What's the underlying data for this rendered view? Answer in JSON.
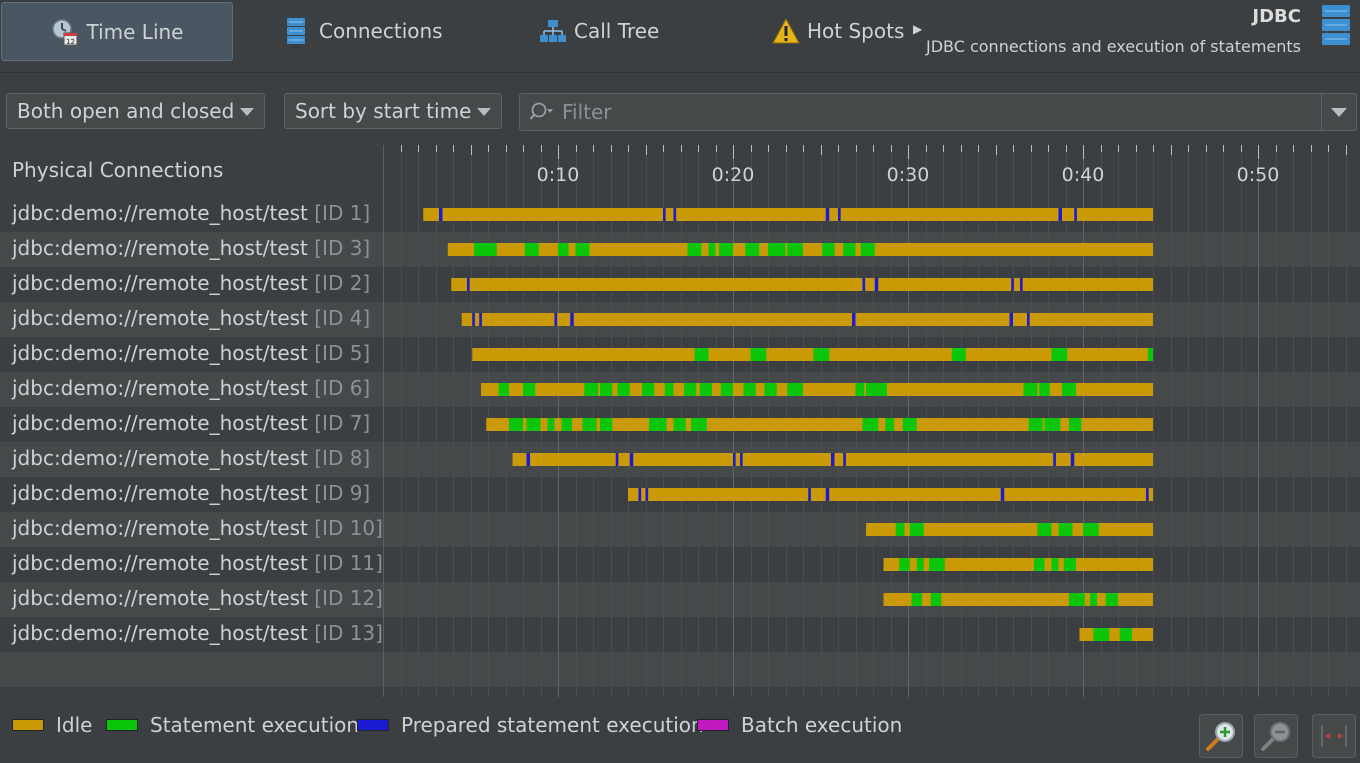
{
  "toolbar": {
    "tabs": [
      {
        "label": "Time Line",
        "icon": "calendar-clock-icon"
      },
      {
        "label": "Connections",
        "icon": "database-icon"
      },
      {
        "label": "Call Tree",
        "icon": "tree-icon"
      },
      {
        "label": "Hot Spots",
        "icon": "warning-icon"
      }
    ],
    "more_icon": "chevron-right-icon",
    "title": "JDBC",
    "subtitle": "JDBC connections and execution of statements"
  },
  "filters": {
    "state_select": "Both open and closed",
    "sort_select": "Sort by start time",
    "filter_placeholder": "Filter"
  },
  "panel": {
    "left_title": "Physical Connections"
  },
  "colors": {
    "idle": "#c99a06",
    "statement": "#0ac50a",
    "prepared": "#1b1bd2",
    "batch": "#c01bc0",
    "background": "#3c3f41",
    "row_alt": "#45494a"
  },
  "chart_data": {
    "type": "timeline",
    "x_unit": "time (m:ss)",
    "xlim": [
      "0:00",
      "0:56"
    ],
    "tick_labels": [
      "0:10",
      "0:20",
      "0:30",
      "0:40",
      "0:50"
    ],
    "legend": [
      {
        "name": "Idle",
        "color_key": "idle"
      },
      {
        "name": "Statement execution",
        "color_key": "statement"
      },
      {
        "name": "Prepared statement execution",
        "color_key": "prepared"
      },
      {
        "name": "Batch execution",
        "color_key": "batch"
      }
    ],
    "rows": [
      {
        "label": "jdbc:demo://remote_host/test",
        "id": "[ID 1]",
        "start": 2.3,
        "end": 44.0,
        "events": [
          {
            "t": 3.2,
            "d": 0.2,
            "k": "prepared"
          },
          {
            "t": 16.0,
            "d": 0.15,
            "k": "prepared"
          },
          {
            "t": 16.6,
            "d": 0.15,
            "k": "prepared"
          },
          {
            "t": 25.3,
            "d": 0.2,
            "k": "prepared"
          },
          {
            "t": 26.0,
            "d": 0.15,
            "k": "prepared"
          },
          {
            "t": 38.6,
            "d": 0.2,
            "k": "prepared"
          },
          {
            "t": 39.5,
            "d": 0.15,
            "k": "prepared"
          }
        ]
      },
      {
        "label": "jdbc:demo://remote_host/test",
        "id": "[ID 3]",
        "start": 3.7,
        "end": 44.0,
        "events": [
          {
            "t": 5.2,
            "d": 1.3,
            "k": "statement"
          },
          {
            "t": 8.1,
            "d": 0.8,
            "k": "statement"
          },
          {
            "t": 10.0,
            "d": 0.6,
            "k": "statement"
          },
          {
            "t": 11.0,
            "d": 0.8,
            "k": "statement"
          },
          {
            "t": 17.4,
            "d": 0.8,
            "k": "statement"
          },
          {
            "t": 18.6,
            "d": 0.4,
            "k": "statement"
          },
          {
            "t": 19.2,
            "d": 0.8,
            "k": "statement"
          },
          {
            "t": 20.7,
            "d": 0.8,
            "k": "statement"
          },
          {
            "t": 22.0,
            "d": 1.0,
            "k": "statement"
          },
          {
            "t": 23.1,
            "d": 0.9,
            "k": "statement"
          },
          {
            "t": 25.1,
            "d": 0.7,
            "k": "statement"
          },
          {
            "t": 26.3,
            "d": 0.7,
            "k": "statement"
          },
          {
            "t": 27.3,
            "d": 0.8,
            "k": "statement"
          }
        ]
      },
      {
        "label": "jdbc:demo://remote_host/test",
        "id": "[ID 2]",
        "start": 3.9,
        "end": 44.0,
        "events": [
          {
            "t": 4.8,
            "d": 0.15,
            "k": "prepared"
          },
          {
            "t": 27.4,
            "d": 0.15,
            "k": "prepared"
          },
          {
            "t": 28.1,
            "d": 0.2,
            "k": "prepared"
          },
          {
            "t": 35.9,
            "d": 0.15,
            "k": "prepared"
          },
          {
            "t": 36.4,
            "d": 0.15,
            "k": "prepared"
          }
        ]
      },
      {
        "label": "jdbc:demo://remote_host/test",
        "id": "[ID 4]",
        "start": 4.5,
        "end": 44.0,
        "events": [
          {
            "t": 5.1,
            "d": 0.15,
            "k": "prepared"
          },
          {
            "t": 5.5,
            "d": 0.15,
            "k": "prepared"
          },
          {
            "t": 9.8,
            "d": 0.15,
            "k": "prepared"
          },
          {
            "t": 10.7,
            "d": 0.2,
            "k": "prepared"
          },
          {
            "t": 26.8,
            "d": 0.2,
            "k": "prepared"
          },
          {
            "t": 35.8,
            "d": 0.2,
            "k": "prepared"
          },
          {
            "t": 36.8,
            "d": 0.15,
            "k": "prepared"
          }
        ]
      },
      {
        "label": "jdbc:demo://remote_host/test",
        "id": "[ID 5]",
        "start": 5.1,
        "end": 44.0,
        "events": [
          {
            "t": 17.8,
            "d": 0.8,
            "k": "statement"
          },
          {
            "t": 21.0,
            "d": 0.9,
            "k": "statement"
          },
          {
            "t": 24.6,
            "d": 0.9,
            "k": "statement"
          },
          {
            "t": 32.5,
            "d": 0.8,
            "k": "statement"
          },
          {
            "t": 38.2,
            "d": 0.9,
            "k": "statement"
          },
          {
            "t": 43.7,
            "d": 0.3,
            "k": "statement"
          }
        ]
      },
      {
        "label": "jdbc:demo://remote_host/test",
        "id": "[ID 6]",
        "start": 5.6,
        "end": 44.0,
        "events": [
          {
            "t": 6.6,
            "d": 0.6,
            "k": "statement"
          },
          {
            "t": 8.0,
            "d": 0.7,
            "k": "statement"
          },
          {
            "t": 11.5,
            "d": 0.8,
            "k": "statement"
          },
          {
            "t": 12.4,
            "d": 0.7,
            "k": "statement"
          },
          {
            "t": 13.4,
            "d": 0.7,
            "k": "statement"
          },
          {
            "t": 14.8,
            "d": 0.7,
            "k": "statement"
          },
          {
            "t": 16.1,
            "d": 0.5,
            "k": "statement"
          },
          {
            "t": 17.2,
            "d": 0.7,
            "k": "statement"
          },
          {
            "t": 18.1,
            "d": 0.7,
            "k": "statement"
          },
          {
            "t": 19.3,
            "d": 0.7,
            "k": "statement"
          },
          {
            "t": 20.6,
            "d": 0.7,
            "k": "statement"
          },
          {
            "t": 21.8,
            "d": 0.7,
            "k": "statement"
          },
          {
            "t": 23.1,
            "d": 0.9,
            "k": "statement"
          },
          {
            "t": 27.0,
            "d": 0.5,
            "k": "statement"
          },
          {
            "t": 27.6,
            "d": 1.2,
            "k": "statement"
          },
          {
            "t": 36.6,
            "d": 0.8,
            "k": "statement"
          },
          {
            "t": 37.5,
            "d": 0.6,
            "k": "statement"
          },
          {
            "t": 38.8,
            "d": 0.8,
            "k": "statement"
          }
        ]
      },
      {
        "label": "jdbc:demo://remote_host/test",
        "id": "[ID 7]",
        "start": 5.9,
        "end": 44.0,
        "events": [
          {
            "t": 7.2,
            "d": 0.8,
            "k": "statement"
          },
          {
            "t": 8.2,
            "d": 0.8,
            "k": "statement"
          },
          {
            "t": 9.4,
            "d": 0.4,
            "k": "statement"
          },
          {
            "t": 10.2,
            "d": 0.6,
            "k": "statement"
          },
          {
            "t": 11.4,
            "d": 0.8,
            "k": "statement"
          },
          {
            "t": 12.4,
            "d": 0.7,
            "k": "statement"
          },
          {
            "t": 15.2,
            "d": 1.0,
            "k": "statement"
          },
          {
            "t": 16.6,
            "d": 0.7,
            "k": "statement"
          },
          {
            "t": 17.6,
            "d": 0.9,
            "k": "statement"
          },
          {
            "t": 27.4,
            "d": 0.9,
            "k": "statement"
          },
          {
            "t": 28.7,
            "d": 0.5,
            "k": "statement"
          },
          {
            "t": 29.7,
            "d": 0.8,
            "k": "statement"
          },
          {
            "t": 36.9,
            "d": 0.8,
            "k": "statement"
          },
          {
            "t": 37.8,
            "d": 0.9,
            "k": "statement"
          },
          {
            "t": 39.2,
            "d": 0.7,
            "k": "statement"
          }
        ]
      },
      {
        "label": "jdbc:demo://remote_host/test",
        "id": "[ID 8]",
        "start": 7.4,
        "end": 44.0,
        "events": [
          {
            "t": 8.2,
            "d": 0.2,
            "k": "prepared"
          },
          {
            "t": 13.3,
            "d": 0.15,
            "k": "prepared"
          },
          {
            "t": 14.1,
            "d": 0.2,
            "k": "prepared"
          },
          {
            "t": 20.0,
            "d": 0.15,
            "k": "prepared"
          },
          {
            "t": 20.4,
            "d": 0.15,
            "k": "prepared"
          },
          {
            "t": 25.6,
            "d": 0.2,
            "k": "prepared"
          },
          {
            "t": 26.3,
            "d": 0.15,
            "k": "prepared"
          },
          {
            "t": 38.3,
            "d": 0.15,
            "k": "prepared"
          },
          {
            "t": 39.3,
            "d": 0.2,
            "k": "prepared"
          }
        ]
      },
      {
        "label": "jdbc:demo://remote_host/test",
        "id": "[ID 9]",
        "start": 14.0,
        "end": 44.0,
        "events": [
          {
            "t": 14.6,
            "d": 0.15,
            "k": "prepared"
          },
          {
            "t": 15.0,
            "d": 0.15,
            "k": "prepared"
          },
          {
            "t": 24.3,
            "d": 0.15,
            "k": "prepared"
          },
          {
            "t": 25.3,
            "d": 0.2,
            "k": "prepared"
          },
          {
            "t": 35.3,
            "d": 0.2,
            "k": "prepared"
          },
          {
            "t": 43.6,
            "d": 0.15,
            "k": "prepared"
          }
        ]
      },
      {
        "label": "jdbc:demo://remote_host/test",
        "id": "[ID 10]",
        "start": 27.6,
        "end": 44.0,
        "events": [
          {
            "t": 29.3,
            "d": 0.5,
            "k": "statement"
          },
          {
            "t": 30.1,
            "d": 0.8,
            "k": "statement"
          },
          {
            "t": 37.4,
            "d": 0.8,
            "k": "statement"
          },
          {
            "t": 38.6,
            "d": 0.8,
            "k": "statement"
          },
          {
            "t": 40.0,
            "d": 0.9,
            "k": "statement"
          }
        ]
      },
      {
        "label": "jdbc:demo://remote_host/test",
        "id": "[ID 11]",
        "start": 28.6,
        "end": 44.0,
        "events": [
          {
            "t": 29.5,
            "d": 0.6,
            "k": "statement"
          },
          {
            "t": 30.5,
            "d": 0.4,
            "k": "statement"
          },
          {
            "t": 31.2,
            "d": 0.9,
            "k": "statement"
          },
          {
            "t": 37.2,
            "d": 0.6,
            "k": "statement"
          },
          {
            "t": 38.2,
            "d": 0.4,
            "k": "statement"
          },
          {
            "t": 38.9,
            "d": 0.7,
            "k": "statement"
          }
        ]
      },
      {
        "label": "jdbc:demo://remote_host/test",
        "id": "[ID 12]",
        "start": 28.6,
        "end": 44.0,
        "events": [
          {
            "t": 30.2,
            "d": 0.6,
            "k": "statement"
          },
          {
            "t": 31.3,
            "d": 0.6,
            "k": "statement"
          },
          {
            "t": 39.2,
            "d": 0.9,
            "k": "statement"
          },
          {
            "t": 40.4,
            "d": 0.4,
            "k": "statement"
          },
          {
            "t": 41.3,
            "d": 0.7,
            "k": "statement"
          }
        ]
      },
      {
        "label": "jdbc:demo://remote_host/test",
        "id": "[ID 13]",
        "start": 39.8,
        "end": 44.0,
        "events": [
          {
            "t": 40.6,
            "d": 0.9,
            "k": "statement"
          },
          {
            "t": 42.1,
            "d": 0.7,
            "k": "statement"
          }
        ]
      }
    ]
  },
  "zoom_controls": {
    "zoom_in_icon": "zoom-in-icon",
    "zoom_out_icon": "zoom-out-icon",
    "fit_icon": "fit-to-width-icon"
  }
}
